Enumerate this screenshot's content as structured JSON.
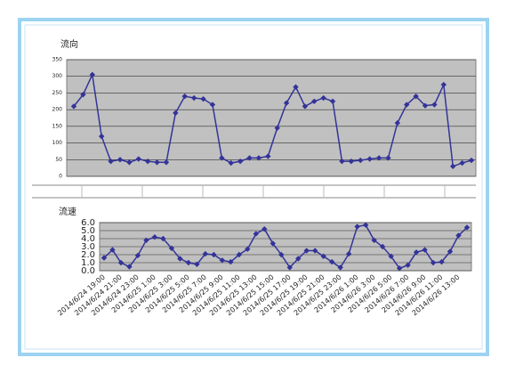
{
  "chart_data": [
    {
      "type": "line",
      "title": "流向",
      "color": "#333399",
      "grid": true,
      "ylim": [
        0,
        350
      ],
      "yticks": [
        0,
        50,
        100,
        150,
        200,
        250,
        300,
        350
      ],
      "values": [
        210,
        245,
        305,
        120,
        45,
        50,
        42,
        52,
        45,
        42,
        42,
        190,
        240,
        235,
        232,
        215,
        55,
        40,
        45,
        55,
        55,
        60,
        145,
        220,
        268,
        210,
        225,
        235,
        225,
        45,
        45,
        48,
        52,
        55,
        55,
        160,
        215,
        240,
        212,
        215,
        275,
        30,
        40,
        48
      ]
    },
    {
      "type": "line",
      "title": "流速",
      "color": "#333399",
      "grid": true,
      "ylim": [
        0,
        6
      ],
      "yticks": [
        {
          "value": 0,
          "label": "0.0"
        },
        {
          "value": 1,
          "label": "1.0"
        },
        {
          "value": 2,
          "label": "2.0"
        },
        {
          "value": 3,
          "label": "3.0"
        },
        {
          "value": 4,
          "label": "4.0"
        },
        {
          "value": 5,
          "label": "5.0"
        },
        {
          "value": 6,
          "label": "6.0"
        }
      ],
      "categories": [
        "2014/6/24 19:00",
        null,
        "2014/6/24 21:00",
        null,
        "2014/6/24 23:00",
        null,
        "2014/6/25 1:00",
        null,
        "2014/6/25 3:00",
        null,
        "2014/6/25 5:00",
        null,
        "2014/6/25 7:00",
        null,
        "2014/6/25 9:00",
        null,
        "2014/6/25 11:00",
        null,
        "2014/6/25 13:00",
        null,
        "2014/6/25 15:00",
        null,
        "2014/6/25 17:00",
        null,
        "2014/6/25 19:00",
        null,
        "2014/6/25 21:00",
        null,
        "2014/6/25 23:00",
        null,
        "2014/6/26 1:00",
        null,
        "2014/6/26 3:00",
        null,
        "2014/6/26 5:00",
        null,
        "2014/6/26 7:00",
        null,
        "2014/6/26 9:00",
        null,
        "2014/6/26 11:00",
        null,
        "2014/6/26 13:00",
        null
      ],
      "values": [
        1.6,
        2.6,
        1.0,
        0.5,
        1.9,
        3.8,
        4.2,
        4.0,
        2.8,
        1.5,
        1.0,
        0.8,
        2.1,
        2.0,
        1.3,
        1.1,
        2.0,
        2.7,
        4.6,
        5.2,
        3.4,
        2.0,
        0.4,
        1.5,
        2.5,
        2.5,
        1.8,
        1.1,
        0.4,
        2.1,
        5.5,
        5.7,
        3.8,
        3.0,
        1.8,
        0.3,
        0.7,
        2.3,
        2.6,
        1.0,
        1.1,
        2.4,
        4.4,
        5.4
      ]
    }
  ]
}
